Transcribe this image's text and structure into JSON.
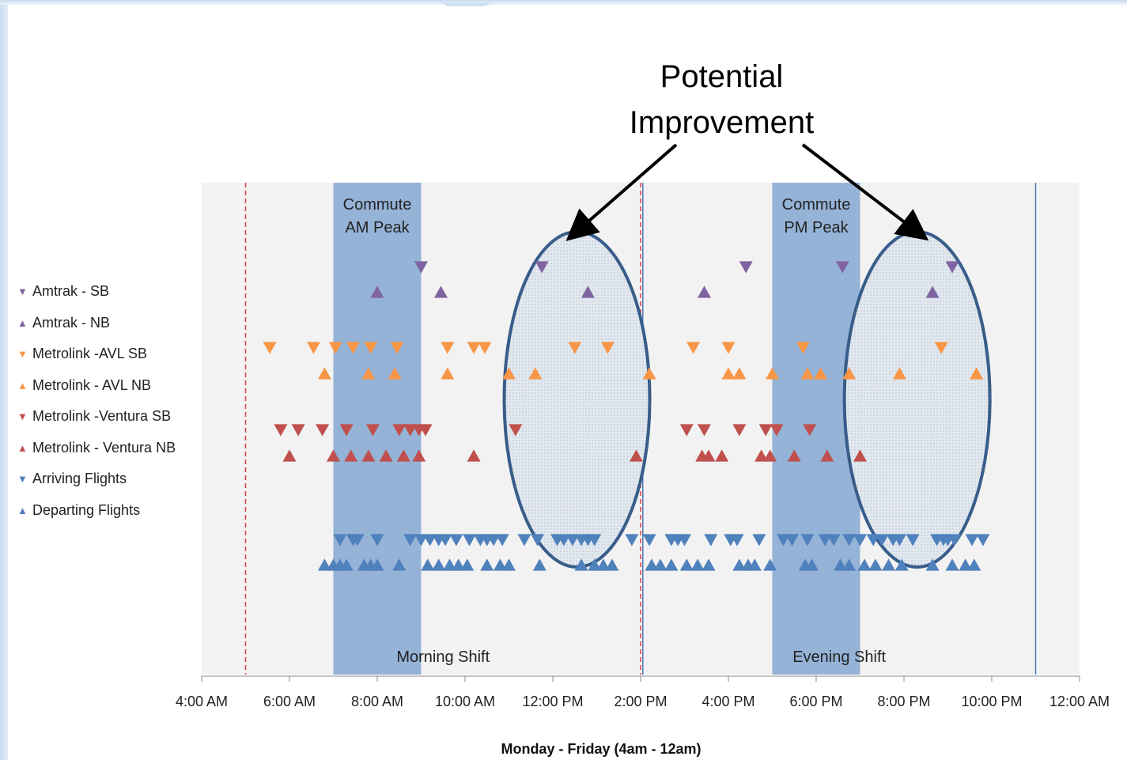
{
  "chart_data": {
    "type": "scatter",
    "xlabel": "Monday - Friday (4am - 12am)",
    "x_range": [
      "4:00 AM",
      "12:00 AM"
    ],
    "x_ticks": [
      "4:00 AM",
      "6:00 AM",
      "8:00 AM",
      "10:00 AM",
      "12:00 PM",
      "2:00 PM",
      "4:00 PM",
      "6:00 PM",
      "8:00 PM",
      "10:00 PM",
      "12:00 AM"
    ],
    "grid": false,
    "legend_position": "left",
    "bands": [
      {
        "label_line1": "Commute",
        "label_line2": "AM Peak",
        "start_hour": 7,
        "end_hour": 9
      },
      {
        "label_line1": "Commute",
        "label_line2": "PM Peak",
        "start_hour": 17,
        "end_hour": 19
      }
    ],
    "shifts": [
      {
        "label": "Morning Shift",
        "start_hour": 5,
        "end_hour": 14,
        "line_color": "#e04040",
        "line_style": "dashed"
      },
      {
        "label": "Evening Shift",
        "start_hour": 14.05,
        "end_hour": 23,
        "line_color": "#4a78b8",
        "line_style": "solid"
      }
    ],
    "annotation": {
      "line1": "Potential",
      "line2": "Improvement",
      "regions": [
        {
          "center_hour": 12.55,
          "row_from": 0,
          "row_to": 9
        },
        {
          "center_hour": 20.3,
          "row_from": 0,
          "row_to": 9
        }
      ]
    },
    "series": [
      {
        "name": "Amtrak - SB",
        "marker": "down",
        "color": "#8064a2",
        "times": [
          9.0,
          11.75,
          16.4,
          18.6,
          21.1
        ]
      },
      {
        "name": "Amtrak - NB",
        "marker": "up",
        "color": "#8064a2",
        "times": [
          8.0,
          9.45,
          12.8,
          15.45,
          20.65
        ]
      },
      {
        "name": "Metrolink -AVL SB",
        "marker": "down",
        "color": "#f79646",
        "times": [
          5.55,
          6.55,
          7.05,
          7.45,
          7.85,
          8.45,
          9.6,
          10.2,
          10.45,
          12.5,
          13.25,
          15.2,
          16.0,
          17.7,
          20.85
        ]
      },
      {
        "name": "Metrolink - AVL NB",
        "marker": "up",
        "color": "#f79646",
        "times": [
          6.8,
          7.8,
          8.4,
          9.6,
          11.0,
          11.6,
          14.2,
          16.0,
          16.25,
          17.0,
          17.8,
          18.1,
          18.75,
          19.9,
          21.65
        ]
      },
      {
        "name": "Metrolink -Ventura SB",
        "marker": "down",
        "color": "#c0504d",
        "times": [
          5.8,
          6.2,
          6.75,
          7.3,
          7.9,
          8.5,
          8.75,
          8.95,
          9.1,
          11.15,
          15.05,
          15.45,
          16.25,
          16.85,
          17.1,
          17.85
        ]
      },
      {
        "name": "Metrolink - Ventura NB",
        "marker": "up",
        "color": "#c0504d",
        "times": [
          6.0,
          7.0,
          7.4,
          7.8,
          8.2,
          8.6,
          8.95,
          10.2,
          13.9,
          15.4,
          15.55,
          15.85,
          16.75,
          16.95,
          17.5,
          18.25,
          19.0
        ]
      },
      {
        "name": "Arriving Flights",
        "marker": "down",
        "color": "#4f81bd",
        "times": [
          7.15,
          7.45,
          7.55,
          8.0,
          8.75,
          9.0,
          9.2,
          9.4,
          9.55,
          9.8,
          10.1,
          10.35,
          10.5,
          10.65,
          10.85,
          11.35,
          11.65,
          12.1,
          12.25,
          12.45,
          12.65,
          12.8,
          12.95,
          13.8,
          14.2,
          14.7,
          14.85,
          15.0,
          15.6,
          16.05,
          16.2,
          16.7,
          17.25,
          17.45,
          17.8,
          18.2,
          18.4,
          18.75,
          19.0,
          19.3,
          19.5,
          19.75,
          19.9,
          20.2,
          20.75,
          20.9,
          21.0,
          21.15,
          21.55,
          21.8
        ]
      },
      {
        "name": "Departing Flights",
        "marker": "up",
        "color": "#4f81bd",
        "times": [
          6.8,
          7.0,
          7.15,
          7.3,
          7.7,
          7.85,
          8.0,
          8.5,
          9.15,
          9.4,
          9.65,
          9.85,
          10.05,
          10.5,
          10.8,
          11.0,
          11.7,
          12.65,
          12.95,
          13.15,
          13.35,
          14.25,
          14.45,
          14.7,
          15.05,
          15.3,
          15.55,
          16.25,
          16.45,
          16.6,
          16.95,
          17.75,
          17.9,
          18.55,
          18.75,
          19.1,
          19.35,
          19.65,
          19.95,
          20.65,
          21.1,
          21.4,
          21.6
        ]
      }
    ]
  }
}
